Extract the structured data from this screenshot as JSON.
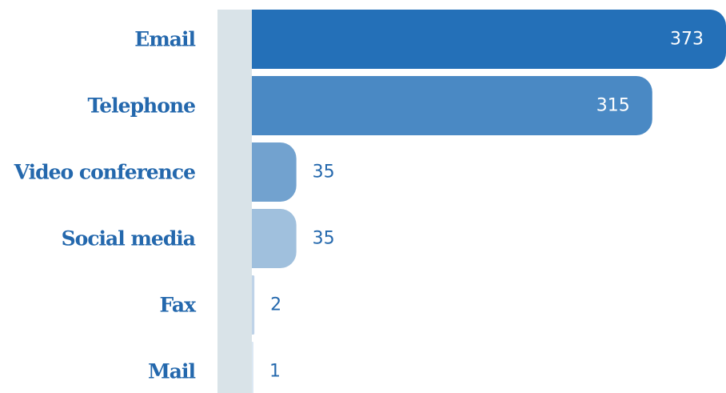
{
  "chart_data": {
    "type": "bar",
    "orientation": "horizontal",
    "categories": [
      "Email",
      "Telephone",
      "Video conference",
      "Social media",
      "Fax",
      "Mail"
    ],
    "values": [
      373,
      315,
      35,
      35,
      2,
      1
    ],
    "title": "",
    "xlabel": "",
    "ylabel": "",
    "xlim": [
      0,
      373
    ],
    "grid": false,
    "legend": "none"
  },
  "colors": {
    "bars": [
      "#2470b8",
      "#4a89c4",
      "#72a2cf",
      "#a0c0dd",
      "#bfd3e8",
      "#dce8f3"
    ],
    "category_text": "#2468ad",
    "value_text_inside": "#ffffff",
    "value_text_outside": "#2468ad",
    "axis_band": "#d9e3e8"
  }
}
